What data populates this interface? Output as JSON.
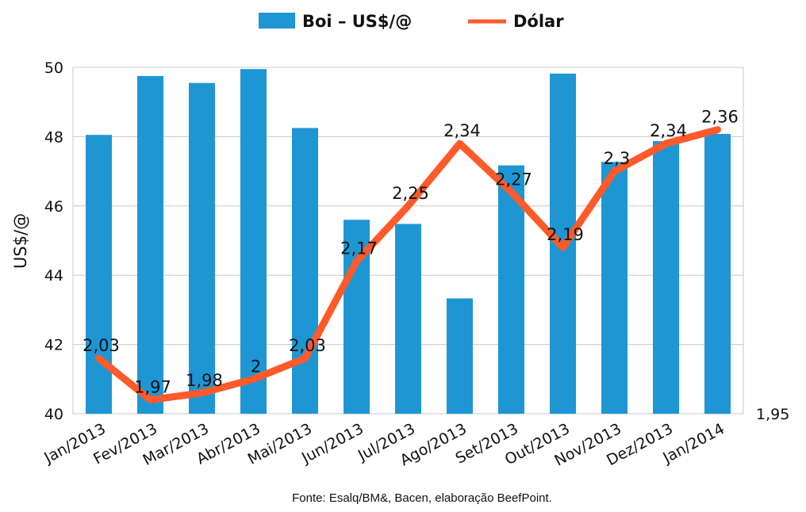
{
  "chart_data": {
    "type": "bar+line",
    "legend": {
      "position": "top",
      "bar_label": "Boi – US$/@",
      "line_label": "Dólar"
    },
    "categories": [
      "Jan/2013",
      "Fev/2013",
      "Mar/2013",
      "Abr/2013",
      "Mai/2013",
      "Jun/2013",
      "Jul/2013",
      "Ago/2013",
      "Set/2013",
      "Out/2013",
      "Nov/2013",
      "Dez/2013",
      "Jan/2014"
    ],
    "series": [
      {
        "name": "Boi – US$/@",
        "type": "bar",
        "axis": "left",
        "color": "#1e96d4",
        "values": [
          48.05,
          49.75,
          49.55,
          49.95,
          48.25,
          45.6,
          45.48,
          43.33,
          47.17,
          49.82,
          47.27,
          47.87,
          48.08
        ]
      },
      {
        "name": "Dólar",
        "type": "line",
        "axis": "right",
        "color": "#ff5a2a",
        "values": [
          2.03,
          1.97,
          1.98,
          2.0,
          2.03,
          2.17,
          2.25,
          2.34,
          2.27,
          2.19,
          2.3,
          2.34,
          2.36
        ],
        "labels": [
          "2,03",
          "1,97",
          "1,98",
          "2",
          "2,03",
          "2,17",
          "2,25",
          "2,34",
          "2,27",
          "2,19",
          "2,3",
          "2,34",
          "2,36"
        ]
      }
    ],
    "y_left": {
      "label": "US$/@",
      "min": 40,
      "max": 50,
      "ticks": [
        40,
        42,
        44,
        46,
        48,
        50
      ]
    },
    "y_right": {
      "min": 1.95,
      "max": 2.45,
      "ticks": [
        1.95
      ],
      "tick_labels": [
        "1,95"
      ]
    },
    "grid": true,
    "source": "Fonte: Esalq/BM&, Bacen, elaboração BeefPoint."
  }
}
